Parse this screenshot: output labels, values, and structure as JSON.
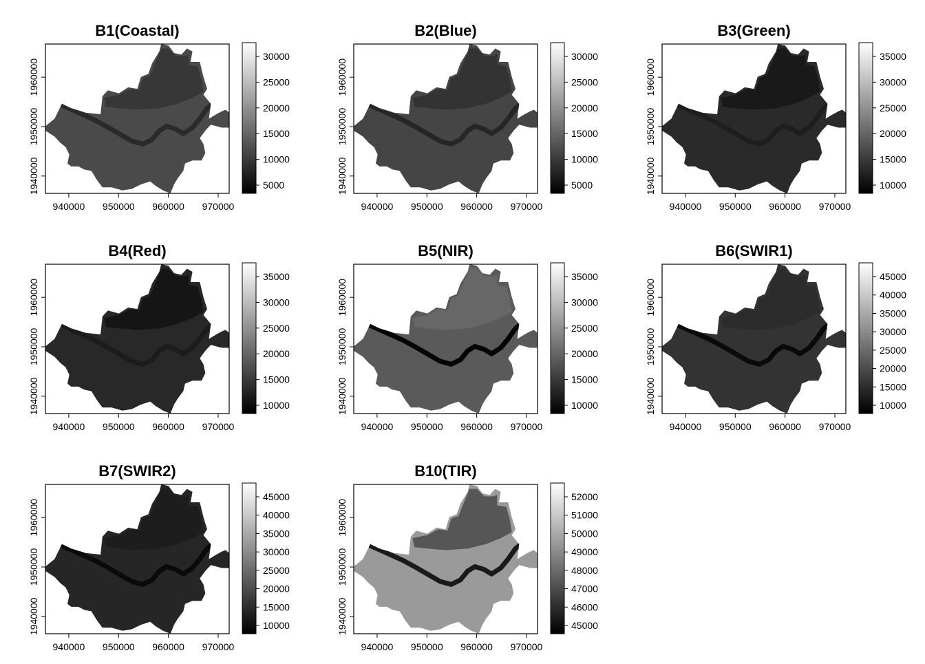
{
  "panels": [
    {
      "title": "B1(Coastal)",
      "xticks": [
        "940000",
        "950000",
        "960000",
        "970000"
      ],
      "yticks": [
        "1940000",
        "1950000",
        "1960000"
      ],
      "legend_ticks": [
        "30000",
        "25000",
        "20000",
        "15000",
        "10000",
        "5000"
      ],
      "tone": {
        "outer": "#4a4a4a",
        "north": "#343434",
        "river": "#2a2a2a"
      }
    },
    {
      "title": "B2(Blue)",
      "xticks": [
        "940000",
        "950000",
        "960000",
        "970000"
      ],
      "yticks": [
        "1940000",
        "1950000",
        "1960000"
      ],
      "legend_ticks": [
        "30000",
        "25000",
        "20000",
        "15000",
        "10000",
        "5000"
      ],
      "tone": {
        "outer": "#454545",
        "north": "#303030",
        "river": "#262626"
      }
    },
    {
      "title": "B3(Green)",
      "xticks": [
        "940000",
        "950000",
        "960000",
        "970000"
      ],
      "yticks": [
        "1940000",
        "1950000",
        "1960000"
      ],
      "legend_ticks": [
        "35000",
        "30000",
        "25000",
        "20000",
        "15000",
        "10000"
      ],
      "tone": {
        "outer": "#2a2a2a",
        "north": "#161616",
        "river": "#1e1e1e"
      }
    },
    {
      "title": "B4(Red)",
      "xticks": [
        "940000",
        "950000",
        "960000",
        "970000"
      ],
      "yticks": [
        "1940000",
        "1950000",
        "1960000"
      ],
      "legend_ticks": [
        "35000",
        "30000",
        "25000",
        "20000",
        "15000",
        "10000"
      ],
      "tone": {
        "outer": "#282828",
        "north": "#121212",
        "river": "#1c1c1c"
      }
    },
    {
      "title": "B5(NIR)",
      "xticks": [
        "940000",
        "950000",
        "960000",
        "970000"
      ],
      "yticks": [
        "1940000",
        "1950000",
        "1960000"
      ],
      "legend_ticks": [
        "35000",
        "30000",
        "25000",
        "20000",
        "15000",
        "10000"
      ],
      "tone": {
        "outer": "#5a5a5a",
        "north": "#6a6a6a",
        "river": "#050505"
      }
    },
    {
      "title": "B6(SWIR1)",
      "xticks": [
        "940000",
        "950000",
        "960000",
        "970000"
      ],
      "yticks": [
        "1940000",
        "1950000",
        "1960000"
      ],
      "legend_ticks": [
        "45000",
        "40000",
        "35000",
        "30000",
        "25000",
        "20000",
        "15000",
        "10000"
      ],
      "tone": {
        "outer": "#333333",
        "north": "#2c2c2c",
        "river": "#0a0a0a"
      }
    },
    {
      "title": "B7(SWIR2)",
      "xticks": [
        "940000",
        "950000",
        "960000",
        "970000"
      ],
      "yticks": [
        "1940000",
        "1950000",
        "1960000"
      ],
      "legend_ticks": [
        "45000",
        "40000",
        "35000",
        "30000",
        "25000",
        "20000",
        "15000",
        "10000"
      ],
      "tone": {
        "outer": "#262626",
        "north": "#1c1c1c",
        "river": "#0a0a0a"
      }
    },
    {
      "title": "B10(TIR)",
      "xticks": [
        "940000",
        "950000",
        "960000",
        "970000"
      ],
      "yticks": [
        "1940000",
        "1950000",
        "1960000"
      ],
      "legend_ticks": [
        "52000",
        "51000",
        "50000",
        "49000",
        "48000",
        "47000",
        "46000",
        "45000"
      ],
      "tone": {
        "outer": "#9a9a9a",
        "north": "#4a4a4a",
        "river": "#1a1a1a"
      }
    }
  ],
  "chart_data": [
    {
      "type": "heatmap",
      "title": "B1(Coastal)",
      "xlim": [
        935000,
        972000
      ],
      "ylim": [
        1936500,
        1966500
      ],
      "colorbar_range": [
        3500,
        33000
      ]
    },
    {
      "type": "heatmap",
      "title": "B2(Blue)",
      "xlim": [
        935000,
        972000
      ],
      "ylim": [
        1936500,
        1966500
      ],
      "colorbar_range": [
        3500,
        34000
      ]
    },
    {
      "type": "heatmap",
      "title": "B3(Green)",
      "xlim": [
        935000,
        972000
      ],
      "ylim": [
        1936500,
        1966500
      ],
      "colorbar_range": [
        7000,
        36500
      ]
    },
    {
      "type": "heatmap",
      "title": "B4(Red)",
      "xlim": [
        935000,
        972000
      ],
      "ylim": [
        1936500,
        1966500
      ],
      "colorbar_range": [
        6500,
        38000
      ]
    },
    {
      "type": "heatmap",
      "title": "B5(NIR)",
      "xlim": [
        935000,
        972000
      ],
      "ylim": [
        1936500,
        1966500
      ],
      "colorbar_range": [
        6500,
        39500
      ]
    },
    {
      "type": "heatmap",
      "title": "B6(SWIR1)",
      "xlim": [
        935000,
        972000
      ],
      "ylim": [
        1936500,
        1966500
      ],
      "colorbar_range": [
        7000,
        45500
      ]
    },
    {
      "type": "heatmap",
      "title": "B7(SWIR2)",
      "xlim": [
        935000,
        972000
      ],
      "ylim": [
        1936500,
        1966500
      ],
      "colorbar_range": [
        7000,
        48500
      ]
    },
    {
      "type": "heatmap",
      "title": "B10(TIR)",
      "xlim": [
        935000,
        972000
      ],
      "ylim": [
        1936500,
        1966500
      ],
      "colorbar_range": [
        44600,
        53000
      ]
    }
  ]
}
